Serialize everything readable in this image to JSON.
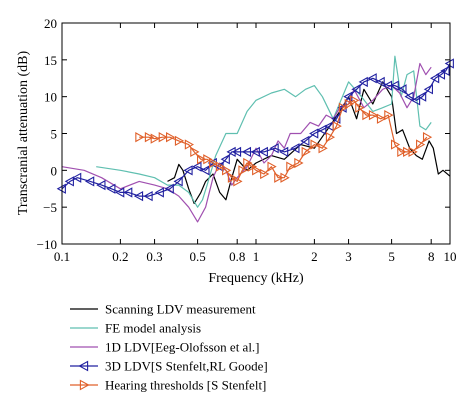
{
  "chart_data": {
    "type": "line",
    "title": "",
    "xlabel": "Frequency (kHz)",
    "ylabel": "Transcranial attenuation (dB)",
    "xscale": "log",
    "xlim": [
      0.1,
      10
    ],
    "ylim": [
      -10,
      20
    ],
    "grid": false,
    "legend_position": "bottom",
    "x_ticks": [
      {
        "value": 0.1,
        "label": "0.1"
      },
      {
        "value": 0.2,
        "label": "0.2"
      },
      {
        "value": 0.3,
        "label": "0.3"
      },
      {
        "value": 0.5,
        "label": "0.5"
      },
      {
        "value": 0.8,
        "label": "0.8"
      },
      {
        "value": 1,
        "label": "1"
      },
      {
        "value": 2,
        "label": "2"
      },
      {
        "value": 3,
        "label": "3"
      },
      {
        "value": 5,
        "label": "5"
      },
      {
        "value": 8,
        "label": "8"
      },
      {
        "value": 10,
        "label": "10"
      }
    ],
    "y_ticks": [
      {
        "value": -10,
        "label": "−10"
      },
      {
        "value": -5,
        "label": "−5"
      },
      {
        "value": 0,
        "label": "0"
      },
      {
        "value": 5,
        "label": "5"
      },
      {
        "value": 10,
        "label": "10"
      },
      {
        "value": 15,
        "label": "15"
      },
      {
        "value": 20,
        "label": "20"
      }
    ],
    "series": [
      {
        "name": "Scanning LDV measurement",
        "color": "#000000",
        "marker": "none",
        "points": [
          [
            0.35,
            -1.5
          ],
          [
            0.38,
            -1.0
          ],
          [
            0.4,
            0.8
          ],
          [
            0.42,
            0.0
          ],
          [
            0.45,
            -2.5
          ],
          [
            0.48,
            -4.5
          ],
          [
            0.52,
            -3.0
          ],
          [
            0.55,
            -1.5
          ],
          [
            0.6,
            -0.5
          ],
          [
            0.65,
            -3.0
          ],
          [
            0.7,
            -4.0
          ],
          [
            0.75,
            -1.0
          ],
          [
            0.8,
            1.5
          ],
          [
            0.9,
            0.0
          ],
          [
            1.0,
            1.0
          ],
          [
            1.2,
            2.0
          ],
          [
            1.4,
            1.5
          ],
          [
            1.7,
            3.5
          ],
          [
            2.0,
            3.0
          ],
          [
            2.4,
            6.0
          ],
          [
            2.7,
            8.0
          ],
          [
            3.0,
            10.0
          ],
          [
            3.3,
            7.0
          ],
          [
            3.6,
            11.0
          ],
          [
            4.0,
            9.0
          ],
          [
            4.5,
            12.0
          ],
          [
            5.0,
            10.0
          ],
          [
            5.3,
            5.0
          ],
          [
            5.7,
            5.5
          ],
          [
            6.2,
            3.0
          ],
          [
            6.7,
            2.0
          ],
          [
            7.2,
            1.5
          ],
          [
            7.8,
            4.0
          ],
          [
            8.2,
            3.0
          ],
          [
            8.7,
            -0.5
          ],
          [
            9.2,
            0.0
          ],
          [
            10.0,
            -0.8
          ]
        ]
      },
      {
        "name": "FE model analysis",
        "color": "#5fbfb0",
        "marker": "none",
        "points": [
          [
            0.15,
            0.5
          ],
          [
            0.2,
            0.0
          ],
          [
            0.25,
            -0.5
          ],
          [
            0.3,
            -1.0
          ],
          [
            0.35,
            -2.0
          ],
          [
            0.4,
            -2.0
          ],
          [
            0.45,
            -3.0
          ],
          [
            0.5,
            -5.0
          ],
          [
            0.53,
            -4.0
          ],
          [
            0.56,
            -2.0
          ],
          [
            0.62,
            2.0
          ],
          [
            0.7,
            5.0
          ],
          [
            0.8,
            5.0
          ],
          [
            0.9,
            8.0
          ],
          [
            1.0,
            9.5
          ],
          [
            1.2,
            10.5
          ],
          [
            1.4,
            11.0
          ],
          [
            1.6,
            10.0
          ],
          [
            1.8,
            11.0
          ],
          [
            2.0,
            11.5
          ],
          [
            2.2,
            10.0
          ],
          [
            2.5,
            7.0
          ],
          [
            3.0,
            12.0
          ],
          [
            3.5,
            10.0
          ],
          [
            4.0,
            8.0
          ],
          [
            4.5,
            8.5
          ],
          [
            5.0,
            9.0
          ],
          [
            5.2,
            15.5
          ],
          [
            5.6,
            10.0
          ],
          [
            6.0,
            13.0
          ],
          [
            6.5,
            13.5
          ],
          [
            7.0,
            6.0
          ],
          [
            7.5,
            5.5
          ],
          [
            8.0,
            6.5
          ]
        ]
      },
      {
        "name": "1D LDV[Eeg-Olofsson et al.]",
        "color": "#a050b0",
        "marker": "none",
        "points": [
          [
            0.1,
            0.5
          ],
          [
            0.13,
            0.0
          ],
          [
            0.16,
            -1.0
          ],
          [
            0.2,
            -2.5
          ],
          [
            0.25,
            -1.5
          ],
          [
            0.3,
            -2.0
          ],
          [
            0.35,
            -2.5
          ],
          [
            0.4,
            -3.5
          ],
          [
            0.45,
            -5.0
          ],
          [
            0.5,
            -7.0
          ],
          [
            0.55,
            -5.0
          ],
          [
            0.6,
            -1.0
          ],
          [
            0.65,
            1.0
          ],
          [
            0.7,
            0.0
          ],
          [
            0.75,
            -2.0
          ],
          [
            0.8,
            -1.0
          ],
          [
            0.9,
            0.5
          ],
          [
            1.0,
            3.0
          ],
          [
            1.1,
            1.0
          ],
          [
            1.2,
            2.0
          ],
          [
            1.3,
            4.0
          ],
          [
            1.4,
            3.0
          ],
          [
            1.5,
            5.0
          ],
          [
            1.7,
            5.0
          ],
          [
            1.9,
            6.5
          ],
          [
            2.1,
            6.0
          ],
          [
            2.3,
            7.5
          ],
          [
            2.5,
            7.0
          ],
          [
            2.7,
            8.5
          ],
          [
            3.0,
            9.0
          ],
          [
            3.2,
            11.0
          ],
          [
            3.6,
            8.5
          ],
          [
            4.0,
            9.5
          ],
          [
            4.5,
            11.0
          ],
          [
            5.0,
            11.5
          ],
          [
            5.5,
            10.5
          ],
          [
            6.0,
            8.5
          ],
          [
            6.5,
            10.0
          ],
          [
            7.0,
            14.5
          ],
          [
            7.5,
            13.0
          ],
          [
            8.0,
            14.0
          ]
        ]
      },
      {
        "name": "3D LDV[S Stenfelt,RL Goode]",
        "color": "#2020a0",
        "marker": "triangle-left",
        "points": [
          [
            0.1,
            -2.5
          ],
          [
            0.11,
            -1.5
          ],
          [
            0.12,
            -1.0
          ],
          [
            0.14,
            -1.5
          ],
          [
            0.16,
            -2.0
          ],
          [
            0.18,
            -2.5
          ],
          [
            0.2,
            -3.0
          ],
          [
            0.22,
            -3.0
          ],
          [
            0.25,
            -3.5
          ],
          [
            0.28,
            -3.5
          ],
          [
            0.32,
            -3.0
          ],
          [
            0.36,
            -2.5
          ],
          [
            0.4,
            -1.5
          ],
          [
            0.45,
            0.0
          ],
          [
            0.5,
            0.5
          ],
          [
            0.55,
            0.0
          ],
          [
            0.6,
            1.0
          ],
          [
            0.65,
            0.5
          ],
          [
            0.7,
            1.5
          ],
          [
            0.75,
            2.5
          ],
          [
            0.8,
            2.5
          ],
          [
            0.9,
            2.5
          ],
          [
            1.0,
            2.5
          ],
          [
            1.1,
            2.5
          ],
          [
            1.25,
            3.0
          ],
          [
            1.4,
            2.5
          ],
          [
            1.6,
            3.0
          ],
          [
            1.8,
            4.0
          ],
          [
            2.0,
            5.0
          ],
          [
            2.2,
            5.5
          ],
          [
            2.4,
            6.0
          ],
          [
            2.6,
            7.0
          ],
          [
            2.8,
            8.5
          ],
          [
            3.0,
            10.0
          ],
          [
            3.3,
            11.0
          ],
          [
            3.6,
            12.0
          ],
          [
            4.0,
            12.5
          ],
          [
            4.4,
            12.0
          ],
          [
            4.8,
            11.5
          ],
          [
            5.2,
            11.5
          ],
          [
            5.7,
            11.0
          ],
          [
            6.2,
            10.0
          ],
          [
            6.7,
            9.5
          ],
          [
            7.2,
            10.0
          ],
          [
            7.8,
            11.0
          ],
          [
            8.4,
            12.5
          ],
          [
            9.0,
            13.0
          ],
          [
            9.5,
            13.5
          ],
          [
            10.0,
            14.5
          ]
        ]
      },
      {
        "name": "Hearing thresholds [S Stenfelt]",
        "color": "#e0602a",
        "marker": "triangle-right",
        "points": [
          [
            0.25,
            4.5
          ],
          [
            0.28,
            4.5
          ],
          [
            0.3,
            4.3
          ],
          [
            0.33,
            4.5
          ],
          [
            0.36,
            4.5
          ],
          [
            0.4,
            4.0
          ],
          [
            0.45,
            3.5
          ],
          [
            0.48,
            2.5
          ],
          [
            0.52,
            1.5
          ],
          [
            0.56,
            1.5
          ],
          [
            0.6,
            1.0
          ],
          [
            0.65,
            0.5
          ],
          [
            0.7,
            0.0
          ],
          [
            0.75,
            -1.0
          ],
          [
            0.8,
            -1.5
          ],
          [
            0.85,
            0.0
          ],
          [
            0.9,
            1.0
          ],
          [
            0.95,
            0.5
          ],
          [
            1.0,
            0.0
          ],
          [
            1.1,
            -0.5
          ],
          [
            1.2,
            0.5
          ],
          [
            1.3,
            -1.0
          ],
          [
            1.4,
            -1.0
          ],
          [
            1.5,
            0.5
          ],
          [
            1.65,
            1.0
          ],
          [
            1.8,
            2.5
          ],
          [
            2.0,
            3.5
          ],
          [
            2.2,
            3.0
          ],
          [
            2.4,
            4.5
          ],
          [
            2.6,
            6.0
          ],
          [
            2.8,
            8.5
          ],
          [
            3.0,
            9.0
          ],
          [
            3.2,
            9.5
          ],
          [
            3.4,
            8.5
          ],
          [
            3.7,
            7.5
          ],
          [
            4.0,
            7.5
          ],
          [
            4.4,
            7.0
          ],
          [
            4.8,
            7.5
          ],
          [
            5.2,
            3.5
          ],
          [
            5.6,
            2.5
          ],
          [
            6.0,
            2.5
          ],
          [
            6.4,
            2.5
          ],
          [
            7.0,
            3.5
          ],
          [
            7.6,
            4.5
          ]
        ]
      }
    ]
  }
}
